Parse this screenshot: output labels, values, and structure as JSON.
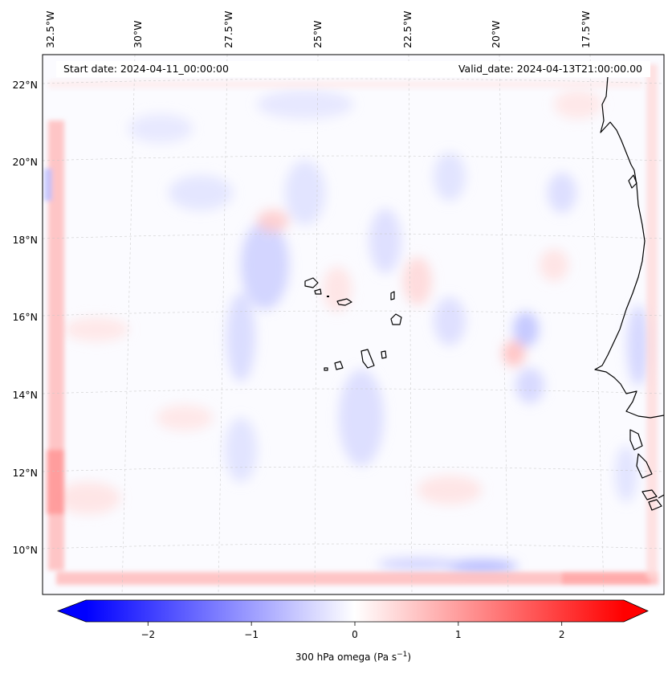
{
  "map": {
    "start_label": "Start date: 2024-04-11_00:00:00",
    "valid_label": "Valid_date: 2024-04-13T21:00:00.00",
    "lon_labels": [
      "32.5°W",
      "30°W",
      "27.5°W",
      "25°W",
      "22.5°W",
      "20°W",
      "17.5°W"
    ],
    "lat_labels": [
      "22°N",
      "20°N",
      "18°N",
      "16°N",
      "14°N",
      "12°N",
      "10°N"
    ],
    "gridlines": true
  },
  "colorbar": {
    "ticks": [
      "−2",
      "−1",
      "0",
      "1",
      "2"
    ],
    "tick_values": [
      -2,
      -1,
      0,
      1,
      2
    ],
    "range": [
      -2.6,
      2.6
    ],
    "label": "300 hPa omega (Pa s",
    "label_sup": "−1",
    "label_end": ")",
    "colormap": "bwr",
    "extend": "both"
  },
  "colors": {
    "negative": "#0000ff",
    "positive": "#ff0000",
    "neutral": "#ffffff",
    "coastline": "#000000"
  }
}
